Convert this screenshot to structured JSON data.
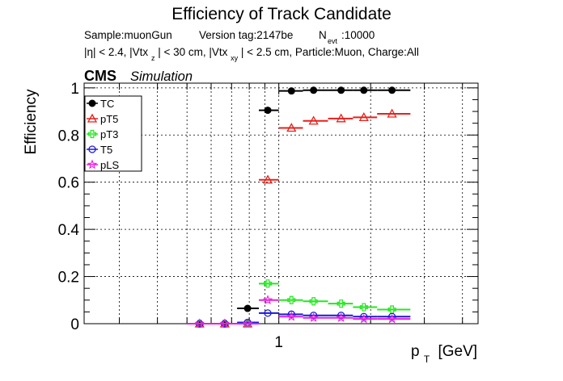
{
  "chart_data": {
    "type": "scatter",
    "title": "Efficiency of Track Candidate",
    "info_line1": {
      "sample": "Sample:muonGun",
      "version": "Version tag:2147be",
      "nevt_N": "N",
      "nevt_sub": "evt",
      "nevt_val": ":10000"
    },
    "info_line2": {
      "p1": "|η| < 2.4, |Vtx",
      "s1": "z",
      "p2": "| < 30 cm, |Vtx",
      "s2": "xy",
      "p3": "| < 2.5 cm, Particle:Muon, Charge:All"
    },
    "cms_label": "CMS",
    "sim_label": "Simulation",
    "ylabel": "Efficiency",
    "xlabel_p": "p",
    "xlabel_sub": "T",
    "xlabel_unit": "[GeV]",
    "x_scale": "log",
    "xlim": [
      0.23,
      4.5
    ],
    "ylim": [
      0,
      1.02
    ],
    "yticks": [
      "0",
      "0.2",
      "0.4",
      "0.6",
      "0.8",
      "1"
    ],
    "xtick_labels": [
      "1"
    ],
    "grid": true,
    "legend_position": "top-left",
    "series": [
      {
        "name": "TC",
        "color": "#000000",
        "marker": "filled-circle",
        "points": [
          {
            "x": 0.55,
            "xlo": 0.5,
            "xhi": 0.6,
            "y": 0.0
          },
          {
            "x": 0.665,
            "xlo": 0.6,
            "xhi": 0.73,
            "y": 0.0
          },
          {
            "x": 0.79,
            "xlo": 0.73,
            "xhi": 0.86,
            "y": 0.065
          },
          {
            "x": 0.92,
            "xlo": 0.86,
            "xhi": 1.0,
            "y": 0.905
          },
          {
            "x": 1.1,
            "xlo": 1.0,
            "xhi": 1.2,
            "y": 0.987
          },
          {
            "x": 1.3,
            "xlo": 1.2,
            "xhi": 1.45,
            "y": 0.99
          },
          {
            "x": 1.6,
            "xlo": 1.45,
            "xhi": 1.75,
            "y": 0.99
          },
          {
            "x": 1.9,
            "xlo": 1.75,
            "xhi": 2.1,
            "y": 0.99
          },
          {
            "x": 2.35,
            "xlo": 2.1,
            "xhi": 2.7,
            "y": 0.99
          }
        ]
      },
      {
        "name": "pT5",
        "color": "#e8201b",
        "marker": "open-triangle",
        "points": [
          {
            "x": 0.55,
            "xlo": 0.5,
            "xhi": 0.6,
            "y": 0.0
          },
          {
            "x": 0.665,
            "xlo": 0.6,
            "xhi": 0.73,
            "y": 0.0
          },
          {
            "x": 0.79,
            "xlo": 0.73,
            "xhi": 0.86,
            "y": 0.0
          },
          {
            "x": 0.92,
            "xlo": 0.86,
            "xhi": 1.0,
            "y": 0.61
          },
          {
            "x": 1.1,
            "xlo": 1.0,
            "xhi": 1.2,
            "y": 0.83
          },
          {
            "x": 1.3,
            "xlo": 1.2,
            "xhi": 1.45,
            "y": 0.86
          },
          {
            "x": 1.6,
            "xlo": 1.45,
            "xhi": 1.75,
            "y": 0.87
          },
          {
            "x": 1.9,
            "xlo": 1.75,
            "xhi": 2.1,
            "y": 0.875
          },
          {
            "x": 2.35,
            "xlo": 2.1,
            "xhi": 2.7,
            "y": 0.89
          }
        ]
      },
      {
        "name": "pT3",
        "color": "#23e81e",
        "marker": "open-cross",
        "points": [
          {
            "x": 0.55,
            "xlo": 0.5,
            "xhi": 0.6,
            "y": 0.0
          },
          {
            "x": 0.665,
            "xlo": 0.6,
            "xhi": 0.73,
            "y": 0.0
          },
          {
            "x": 0.79,
            "xlo": 0.73,
            "xhi": 0.86,
            "y": 0.0
          },
          {
            "x": 0.92,
            "xlo": 0.86,
            "xhi": 1.0,
            "y": 0.17
          },
          {
            "x": 1.1,
            "xlo": 1.0,
            "xhi": 1.2,
            "y": 0.1
          },
          {
            "x": 1.3,
            "xlo": 1.2,
            "xhi": 1.45,
            "y": 0.095
          },
          {
            "x": 1.6,
            "xlo": 1.45,
            "xhi": 1.75,
            "y": 0.085
          },
          {
            "x": 1.9,
            "xlo": 1.75,
            "xhi": 2.1,
            "y": 0.07
          },
          {
            "x": 2.35,
            "xlo": 2.1,
            "xhi": 2.7,
            "y": 0.06
          }
        ]
      },
      {
        "name": "T5",
        "color": "#1a1ad6",
        "marker": "open-circle",
        "points": [
          {
            "x": 0.55,
            "xlo": 0.5,
            "xhi": 0.6,
            "y": 0.0
          },
          {
            "x": 0.665,
            "xlo": 0.6,
            "xhi": 0.73,
            "y": 0.0
          },
          {
            "x": 0.79,
            "xlo": 0.73,
            "xhi": 0.86,
            "y": 0.005
          },
          {
            "x": 0.92,
            "xlo": 0.86,
            "xhi": 1.0,
            "y": 0.045
          },
          {
            "x": 1.1,
            "xlo": 1.0,
            "xhi": 1.2,
            "y": 0.04
          },
          {
            "x": 1.3,
            "xlo": 1.2,
            "xhi": 1.45,
            "y": 0.035
          },
          {
            "x": 1.6,
            "xlo": 1.45,
            "xhi": 1.75,
            "y": 0.035
          },
          {
            "x": 1.9,
            "xlo": 1.75,
            "xhi": 2.1,
            "y": 0.03
          },
          {
            "x": 2.35,
            "xlo": 2.1,
            "xhi": 2.7,
            "y": 0.03
          }
        ]
      },
      {
        "name": "pLS",
        "color": "#e81ee0",
        "marker": "open-star",
        "points": [
          {
            "x": 0.55,
            "xlo": 0.5,
            "xhi": 0.6,
            "y": 0.0
          },
          {
            "x": 0.665,
            "xlo": 0.6,
            "xhi": 0.73,
            "y": 0.0
          },
          {
            "x": 0.79,
            "xlo": 0.73,
            "xhi": 0.86,
            "y": 0.0
          },
          {
            "x": 0.92,
            "xlo": 0.86,
            "xhi": 1.0,
            "y": 0.1
          },
          {
            "x": 1.1,
            "xlo": 1.0,
            "xhi": 1.2,
            "y": 0.03
          },
          {
            "x": 1.3,
            "xlo": 1.2,
            "xhi": 1.45,
            "y": 0.025
          },
          {
            "x": 1.6,
            "xlo": 1.45,
            "xhi": 1.75,
            "y": 0.025
          },
          {
            "x": 1.9,
            "xlo": 1.75,
            "xhi": 2.1,
            "y": 0.02
          },
          {
            "x": 2.35,
            "xlo": 2.1,
            "xhi": 2.7,
            "y": 0.02
          }
        ]
      }
    ]
  }
}
